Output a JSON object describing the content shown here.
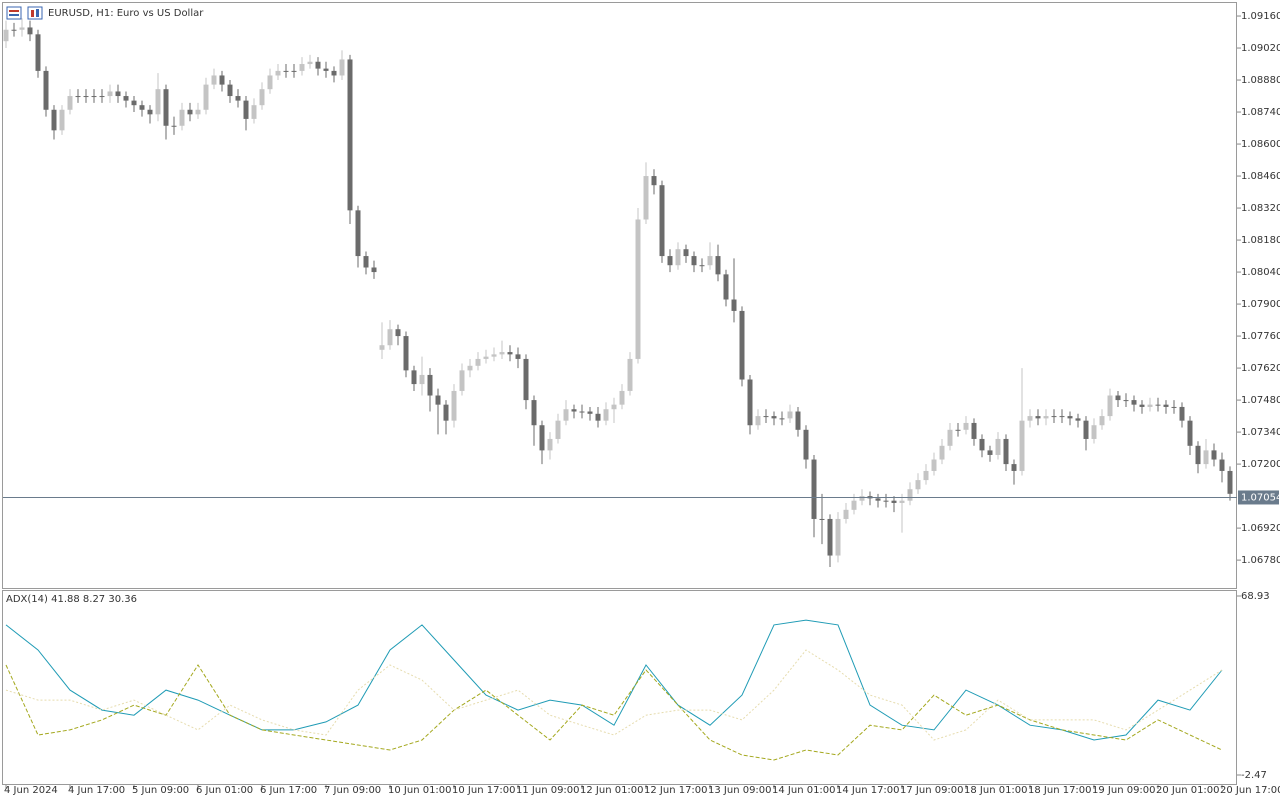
{
  "chart_data": [
    {
      "type": "candlestick",
      "title": "EURUSD, H1:  Euro vs US Dollar",
      "categories": [
        "4 Jun 2024",
        null,
        null,
        null,
        null,
        null,
        null,
        null,
        "4 Jun 17:00",
        null,
        null,
        null,
        null,
        null,
        null,
        null,
        "5 Jun 09:00",
        null,
        null,
        null,
        null,
        null,
        null,
        null,
        "6 Jun 01:00",
        null,
        null,
        null,
        null,
        null,
        null,
        null,
        "6 Jun 17:00",
        null,
        null,
        null,
        null,
        null,
        null,
        null,
        "7 Jun 09:00",
        null,
        null,
        null,
        null,
        null,
        null,
        null,
        "10 Jun 01:00",
        null,
        null,
        null,
        null,
        null,
        null,
        null,
        "10 Jun 17:00",
        null,
        null,
        null,
        null,
        null,
        null,
        null,
        "11 Jun 09:00",
        null,
        null,
        null,
        null,
        null,
        null,
        null,
        "12 Jun 01:00",
        null,
        null,
        null,
        null,
        null,
        null,
        null,
        "12 Jun 17:00",
        null,
        null,
        null,
        null,
        null,
        null,
        null,
        "13 Jun 09:00",
        null,
        null,
        null,
        null,
        null,
        null,
        null,
        "14 Jun 01:00",
        null,
        null,
        null,
        null,
        null,
        null,
        null,
        "14 Jun 17:00",
        null,
        null,
        null,
        null,
        null,
        null,
        null,
        "17 Jun 09:00",
        null,
        null,
        null,
        null,
        null,
        null,
        null,
        "18 Jun 01:00",
        null,
        null,
        null,
        null,
        null,
        null,
        null,
        "18 Jun 17:00",
        null,
        null,
        null,
        null,
        null,
        null,
        null,
        "19 Jun 09:00",
        null,
        null,
        null,
        null,
        null,
        null,
        null,
        "20 Jun 01:00",
        null,
        null,
        null,
        null,
        null,
        null,
        null,
        "20 Jun 17:00",
        null
      ],
      "open": [
        1.0905,
        1.091,
        1.091,
        1.0911,
        1.0908,
        1.0892,
        1.0875,
        1.0866,
        1.0875,
        1.0881,
        1.0881,
        1.0881,
        1.0881,
        1.0881,
        1.0883,
        1.0881,
        1.0879,
        1.0877,
        1.0875,
        1.0873,
        1.0884,
        1.0868,
        1.0868,
        1.0875,
        1.0873,
        1.0875,
        1.0886,
        1.089,
        1.0886,
        1.0881,
        1.0879,
        1.0871,
        1.0877,
        1.0884,
        1.089,
        1.0892,
        1.0892,
        1.0892,
        1.0895,
        1.0896,
        1.0893,
        1.0892,
        1.089,
        1.0897,
        1.0831,
        1.0811,
        1.0806,
        1.077,
        1.0772,
        1.0779,
        1.0776,
        1.0761,
        1.0755,
        1.0759,
        1.075,
        1.0746,
        1.0739,
        1.0752,
        1.0761,
        1.0763,
        1.0766,
        1.0767,
        1.0768,
        1.0769,
        1.0768,
        1.0766,
        1.0748,
        1.0737,
        1.0726,
        1.0731,
        1.0739,
        1.0744,
        1.0743,
        1.0743,
        1.0742,
        1.0739,
        1.0744,
        1.0746,
        1.0752,
        1.0766,
        1.0827,
        1.0846,
        1.0842,
        1.0811,
        1.0807,
        1.0814,
        1.0811,
        1.0807,
        1.0807,
        1.0811,
        1.0803,
        1.0792,
        1.0787,
        1.0757,
        1.0737,
        1.0741,
        1.0741,
        1.074,
        1.074,
        1.0743,
        1.0735,
        1.0722,
        1.0696,
        1.0696,
        1.068,
        1.0696,
        1.07,
        1.0704,
        1.0706,
        1.0705,
        1.0704,
        1.0704,
        1.0703,
        1.0704,
        1.0709,
        1.0713,
        1.0717,
        1.0722,
        1.0728,
        1.0735,
        1.0735,
        1.0738,
        1.0731,
        1.0726,
        1.0724,
        1.0731,
        1.072,
        1.0717,
        1.0739,
        1.0741,
        1.074,
        1.0741,
        1.0741,
        1.0741,
        1.074,
        1.0739,
        1.0731,
        1.0737,
        1.0741,
        1.075,
        1.0748,
        1.0748,
        1.0746,
        1.0745,
        1.0746,
        1.0746,
        1.0745,
        1.0745,
        1.0739,
        1.0728,
        1.072,
        1.0726,
        1.0722,
        1.0717
      ],
      "high": [
        1.0914,
        1.0913,
        1.0915,
        1.0914,
        1.091,
        1.0894,
        1.0877,
        1.0877,
        1.0884,
        1.0884,
        1.0884,
        1.0884,
        1.0884,
        1.0886,
        1.0886,
        1.0883,
        1.0881,
        1.0879,
        1.0877,
        1.0891,
        1.0886,
        1.0872,
        1.0878,
        1.0878,
        1.0878,
        1.0889,
        1.0893,
        1.0892,
        1.0888,
        1.0884,
        1.0881,
        1.088,
        1.0887,
        1.0893,
        1.0895,
        1.0895,
        1.0895,
        1.0898,
        1.0899,
        1.0898,
        1.0896,
        1.0894,
        1.0901,
        1.0899,
        1.0833,
        1.0813,
        1.0809,
        1.0782,
        1.0783,
        1.0781,
        1.0778,
        1.0763,
        1.0767,
        1.0762,
        1.0753,
        1.0748,
        1.0755,
        1.0764,
        1.0766,
        1.0769,
        1.077,
        1.0771,
        1.0774,
        1.0772,
        1.0771,
        1.0768,
        1.075,
        1.0739,
        1.0734,
        1.0742,
        1.0748,
        1.0746,
        1.0746,
        1.0745,
        1.0745,
        1.0747,
        1.0749,
        1.0755,
        1.0769,
        1.0832,
        1.0852,
        1.0849,
        1.0844,
        1.0814,
        1.0817,
        1.0816,
        1.0813,
        1.081,
        1.0817,
        1.0816,
        1.0805,
        1.081,
        1.0789,
        1.0759,
        1.0744,
        1.0744,
        1.0743,
        1.0743,
        1.0746,
        1.0745,
        1.0737,
        1.0724,
        1.0707,
        1.0698,
        1.0699,
        1.0703,
        1.0707,
        1.0709,
        1.0708,
        1.0707,
        1.0707,
        1.0706,
        1.0707,
        1.0712,
        1.0716,
        1.072,
        1.0725,
        1.0731,
        1.0738,
        1.0738,
        1.0741,
        1.074,
        1.0733,
        1.0728,
        1.0734,
        1.0733,
        1.0722,
        1.0762,
        1.0744,
        1.0744,
        1.0744,
        1.0744,
        1.0744,
        1.0743,
        1.0742,
        1.0741,
        1.074,
        1.0744,
        1.0753,
        1.0752,
        1.0751,
        1.075,
        1.0748,
        1.0749,
        1.0749,
        1.0748,
        1.0748,
        1.0747,
        1.0741,
        1.073,
        1.0731,
        1.0729,
        1.0725,
        1.0719
      ],
      "low": [
        1.0902,
        1.0907,
        1.0907,
        1.0905,
        1.0889,
        1.0872,
        1.0862,
        1.0864,
        1.0873,
        1.0878,
        1.0878,
        1.0878,
        1.0878,
        1.0878,
        1.0878,
        1.0876,
        1.0874,
        1.0872,
        1.0869,
        1.087,
        1.0862,
        1.0864,
        1.0866,
        1.087,
        1.0871,
        1.0873,
        1.0884,
        1.0883,
        1.0878,
        1.0876,
        1.0866,
        1.0869,
        1.0875,
        1.0882,
        1.0888,
        1.0889,
        1.0889,
        1.089,
        1.0893,
        1.089,
        1.0889,
        1.0887,
        1.0888,
        1.0825,
        1.0806,
        1.0803,
        1.0801,
        1.0766,
        1.077,
        1.0772,
        1.0758,
        1.0752,
        1.075,
        1.0743,
        1.0733,
        1.0733,
        1.0736,
        1.075,
        1.0758,
        1.0761,
        1.0764,
        1.0765,
        1.0766,
        1.0765,
        1.0762,
        1.0744,
        1.0728,
        1.072,
        1.0722,
        1.0729,
        1.0737,
        1.074,
        1.074,
        1.0739,
        1.0736,
        1.0737,
        1.0738,
        1.0744,
        1.075,
        1.0764,
        1.0825,
        1.0838,
        1.0808,
        1.0804,
        1.0805,
        1.0808,
        1.0804,
        1.0804,
        1.0805,
        1.08,
        1.0789,
        1.0782,
        1.0754,
        1.0733,
        1.0735,
        1.0738,
        1.0737,
        1.0737,
        1.0738,
        1.0732,
        1.0718,
        1.0688,
        1.0685,
        1.0675,
        1.0677,
        1.0694,
        1.0698,
        1.0702,
        1.0702,
        1.0701,
        1.0701,
        1.0699,
        1.069,
        1.0702,
        1.0707,
        1.0711,
        1.0715,
        1.072,
        1.0726,
        1.0732,
        1.0733,
        1.0728,
        1.0723,
        1.0721,
        1.0722,
        1.0717,
        1.0711,
        1.0715,
        1.0736,
        1.0737,
        1.0737,
        1.0738,
        1.0738,
        1.0737,
        1.0736,
        1.0726,
        1.0729,
        1.0735,
        1.0739,
        1.0745,
        1.0745,
        1.0743,
        1.0742,
        1.0743,
        1.0743,
        1.0742,
        1.0742,
        1.0736,
        1.0724,
        1.0716,
        1.0718,
        1.0719,
        1.0712,
        1.0704
      ],
      "close": [
        1.091,
        1.091,
        1.0911,
        1.0908,
        1.0892,
        1.0875,
        1.0866,
        1.0875,
        1.0881,
        1.0881,
        1.0881,
        1.0881,
        1.0881,
        1.0883,
        1.0881,
        1.0879,
        1.0877,
        1.0875,
        1.0873,
        1.0884,
        1.0868,
        1.0868,
        1.0875,
        1.0873,
        1.0875,
        1.0886,
        1.089,
        1.0886,
        1.0881,
        1.0879,
        1.0871,
        1.0877,
        1.0884,
        1.089,
        1.0892,
        1.0892,
        1.0892,
        1.0895,
        1.0896,
        1.0893,
        1.0892,
        1.089,
        1.0897,
        1.0831,
        1.0811,
        1.0806,
        1.0804,
        1.0772,
        1.0779,
        1.0776,
        1.0761,
        1.0755,
        1.0759,
        1.075,
        1.0746,
        1.0739,
        1.0752,
        1.0761,
        1.0763,
        1.0766,
        1.0767,
        1.0768,
        1.0769,
        1.0768,
        1.0766,
        1.0748,
        1.0737,
        1.0726,
        1.0731,
        1.0739,
        1.0744,
        1.0743,
        1.0743,
        1.0742,
        1.0739,
        1.0744,
        1.0746,
        1.0752,
        1.0766,
        1.0827,
        1.0846,
        1.0842,
        1.0811,
        1.0807,
        1.0814,
        1.0811,
        1.0807,
        1.0807,
        1.0811,
        1.0803,
        1.0792,
        1.0787,
        1.0757,
        1.0737,
        1.0741,
        1.0741,
        1.074,
        1.074,
        1.0743,
        1.0735,
        1.0722,
        1.0696,
        1.0696,
        1.068,
        1.0696,
        1.07,
        1.0704,
        1.0706,
        1.0705,
        1.0704,
        1.0704,
        1.0703,
        1.0704,
        1.0709,
        1.0713,
        1.0717,
        1.0722,
        1.0728,
        1.0735,
        1.0735,
        1.0738,
        1.0731,
        1.0726,
        1.0724,
        1.0731,
        1.072,
        1.0717,
        1.0739,
        1.0741,
        1.074,
        1.0741,
        1.0741,
        1.0741,
        1.074,
        1.0739,
        1.0731,
        1.0737,
        1.0741,
        1.075,
        1.0748,
        1.0748,
        1.0746,
        1.0745,
        1.0746,
        1.0746,
        1.0745,
        1.0745,
        1.0739,
        1.0728,
        1.072,
        1.0726,
        1.0722,
        1.0717,
        1.0707
      ],
      "up_color": "#c4c4c4",
      "down_color": "#6b6b6b",
      "ylim": [
        1.06658,
        1.09217
      ],
      "yticks": [
        {
          "value": 1.0916,
          "label": "1.09160"
        },
        {
          "value": 1.0902,
          "label": "1.09020"
        },
        {
          "value": 1.0888,
          "label": "1.08880"
        },
        {
          "value": 1.0874,
          "label": "1.08740"
        },
        {
          "value": 1.086,
          "label": "1.08600"
        },
        {
          "value": 1.0846,
          "label": "1.08460"
        },
        {
          "value": 1.0832,
          "label": "1.08320"
        },
        {
          "value": 1.0818,
          "label": "1.08180"
        },
        {
          "value": 1.0804,
          "label": "1.08040"
        },
        {
          "value": 1.079,
          "label": "1.07900"
        },
        {
          "value": 1.0776,
          "label": "1.07760"
        },
        {
          "value": 1.0762,
          "label": "1.07620"
        },
        {
          "value": 1.0748,
          "label": "1.07480"
        },
        {
          "value": 1.0734,
          "label": "1.07340"
        },
        {
          "value": 1.072,
          "label": "1.07200"
        },
        {
          "value": 1.0692,
          "label": "1.06920"
        },
        {
          "value": 1.0678,
          "label": "1.06780"
        }
      ],
      "current_price": 1.07054,
      "current_price_color": "#6a7b8c"
    },
    {
      "type": "line",
      "title": "ADX(14) 41.88 8.27 30.36",
      "series": [
        {
          "color": "#1f9bb5",
          "style": "solid",
          "values": [
            57.4,
            47.4,
            31.4,
            23.4,
            21.4,
            31.4,
            27.4,
            21.4,
            15.5,
            15.5,
            18.7,
            25.4,
            47.4,
            57.4,
            43.4,
            29.4,
            23.4,
            27.4,
            25.4,
            17.4,
            41.4,
            25.4,
            17.4,
            29.4,
            57.4,
            59.3,
            57.4,
            25.4,
            17.4,
            15.5,
            31.4,
            25.4,
            17.4,
            15.5,
            11.5,
            13.5,
            27.4,
            23.4,
            39.4
          ]
        },
        {
          "color": "#a4a81e",
          "style": "dashed",
          "values": [
            41.4,
            13.5,
            15.5,
            19.5,
            25.4,
            21.4,
            41.4,
            21.4,
            15.5,
            13.5,
            11.5,
            9.5,
            7.5,
            11.5,
            23.4,
            31.4,
            21.4,
            11.5,
            25.4,
            21.4,
            39.4,
            25.4,
            11.5,
            5.5,
            3.5,
            7.5,
            5.5,
            17.4,
            15.5,
            29.4,
            21.4,
            25.4,
            19.5,
            15.5,
            13.5,
            11.5,
            19.5,
            13.5,
            7.5
          ]
        },
        {
          "color": "#e6dcae",
          "style": "dotted",
          "values": [
            31.4,
            27.4,
            27.4,
            23.4,
            27.4,
            21.4,
            15.5,
            25.4,
            19.5,
            15.5,
            13.5,
            31.4,
            41.4,
            35.4,
            23.4,
            27.4,
            31.4,
            21.4,
            17.4,
            13.5,
            21.4,
            23.4,
            23.4,
            19.5,
            31.4,
            47.4,
            39.4,
            29.4,
            25.4,
            11.5,
            15.5,
            27.4,
            19.5,
            19.5,
            19.5,
            15.5,
            23.4,
            31.4,
            39.4
          ]
        }
      ],
      "ylim": [
        -2.47,
        68.93
      ],
      "yticks": [
        68.93,
        -2.47
      ]
    }
  ]
}
